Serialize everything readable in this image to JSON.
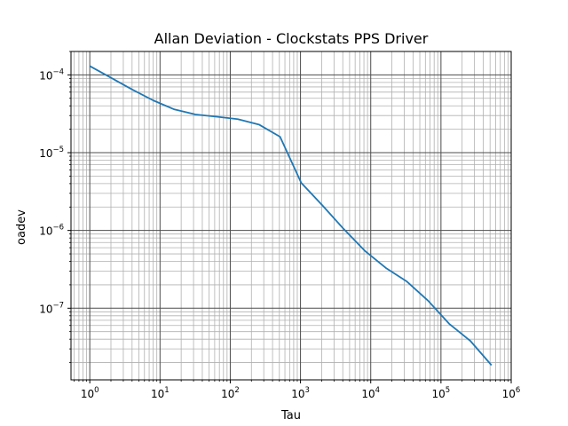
{
  "chart_data": {
    "type": "line",
    "title": "Allan Deviation - Clockstats PPS Driver",
    "xlabel": "Tau",
    "ylabel": "oadev",
    "xscale": "log",
    "yscale": "log",
    "xlim": [
      0.54,
      1000000
    ],
    "ylim": [
      1.2e-08,
      0.0002
    ],
    "grid": "major and minor",
    "x_ticks": [
      {
        "base": "10",
        "exp": "0",
        "value": 1
      },
      {
        "base": "10",
        "exp": "1",
        "value": 10
      },
      {
        "base": "10",
        "exp": "2",
        "value": 100
      },
      {
        "base": "10",
        "exp": "3",
        "value": 1000
      },
      {
        "base": "10",
        "exp": "4",
        "value": 10000
      },
      {
        "base": "10",
        "exp": "5",
        "value": 100000
      },
      {
        "base": "10",
        "exp": "6",
        "value": 1000000
      }
    ],
    "y_ticks": [
      {
        "base": "10",
        "exp": "−7",
        "value": 1e-07
      },
      {
        "base": "10",
        "exp": "−6",
        "value": 1e-06
      },
      {
        "base": "10",
        "exp": "−5",
        "value": 1e-05
      },
      {
        "base": "10",
        "exp": "−4",
        "value": 0.0001
      }
    ],
    "series": [
      {
        "color": "#1f77b4",
        "x": [
          1,
          2,
          4,
          8,
          16,
          32,
          64,
          128,
          256,
          512,
          1024,
          2048,
          4096,
          8192,
          16384,
          32768,
          65536,
          131072,
          262144,
          524288
        ],
        "y": [
          0.00013,
          9.2e-05,
          6.5e-05,
          4.7e-05,
          3.6e-05,
          3.1e-05,
          2.9e-05,
          2.7e-05,
          2.3e-05,
          1.6e-05,
          4.1e-06,
          2.1e-06,
          1.05e-06,
          5.5e-07,
          3.3e-07,
          2.2e-07,
          1.25e-07,
          6.3e-08,
          3.8e-08,
          1.85e-08
        ]
      }
    ]
  }
}
